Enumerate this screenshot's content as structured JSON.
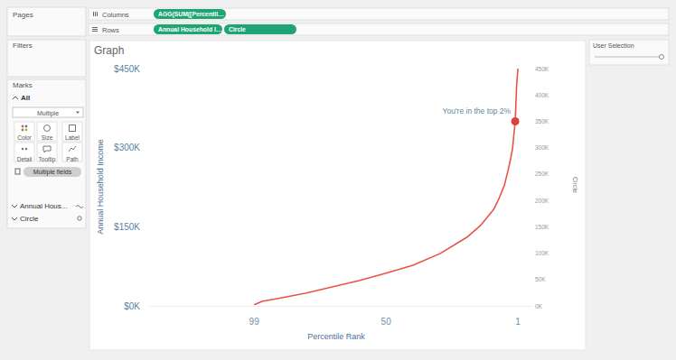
{
  "ui": {
    "pages": "Pages",
    "filters": "Filters",
    "marks": "Marks",
    "all": "All",
    "mark_type": "Multiple",
    "buttons": [
      "Color",
      "Size",
      "Label",
      "Detail",
      "Tooltip",
      "Path"
    ],
    "fields_pill": "Multiple fields",
    "mark_layers": [
      "Annual Hous...",
      "Circle"
    ],
    "columns": "Columns",
    "columns_pills": [
      "AGG(SUM([Percentil…"
    ],
    "rows": "Rows",
    "rows_pills": [
      "Annual Household I…",
      "Circle"
    ],
    "parameter": "User Selection"
  },
  "chart_data": {
    "type": "line",
    "title": "Graph",
    "x_label": "Percentile Rank",
    "y_label": "Annual Household Income",
    "y2_label": "Circle",
    "annotation": "You're in the top 2%",
    "x": [
      99,
      96,
      90,
      80,
      70,
      60,
      50,
      40,
      30,
      20,
      15,
      10,
      8,
      6,
      5,
      4,
      3,
      2,
      1.5,
      1
    ],
    "series": [
      {
        "type": "line",
        "color": "#e8534b",
        "values": [
          2000,
          8500,
          14000,
          24000,
          36000,
          48000,
          62000,
          77000,
          99000,
          130000,
          152000,
          183000,
          204000,
          229000,
          250000,
          272000,
          298000,
          352000,
          417000,
          450000
        ]
      },
      {
        "type": "scatter",
        "axis": "y2",
        "marker": "circle",
        "color": "#e0403c",
        "x": [
          2
        ],
        "values": [
          350000
        ]
      }
    ],
    "xlim": [
      138,
      -4
    ],
    "xticks": [
      99,
      50,
      1
    ],
    "ylim": [
      0,
      450000
    ],
    "yticks": [
      {
        "value": 0,
        "label": "$0K"
      },
      {
        "value": 150000,
        "label": "$150K"
      },
      {
        "value": 300000,
        "label": "$300K"
      },
      {
        "value": 450000,
        "label": "$450K"
      }
    ],
    "y2lim": [
      0,
      450000
    ],
    "y2ticks": [
      {
        "value": 0,
        "label": "0K"
      },
      {
        "value": 50000,
        "label": "50K"
      },
      {
        "value": 100000,
        "label": "100K"
      },
      {
        "value": 150000,
        "label": "150K"
      },
      {
        "value": 200000,
        "label": "200K"
      },
      {
        "value": 250000,
        "label": "250K"
      },
      {
        "value": 300000,
        "label": "300K"
      },
      {
        "value": 350000,
        "label": "350K"
      },
      {
        "value": 400000,
        "label": "400K"
      },
      {
        "value": 450000,
        "label": "450K"
      }
    ],
    "grid": false
  }
}
